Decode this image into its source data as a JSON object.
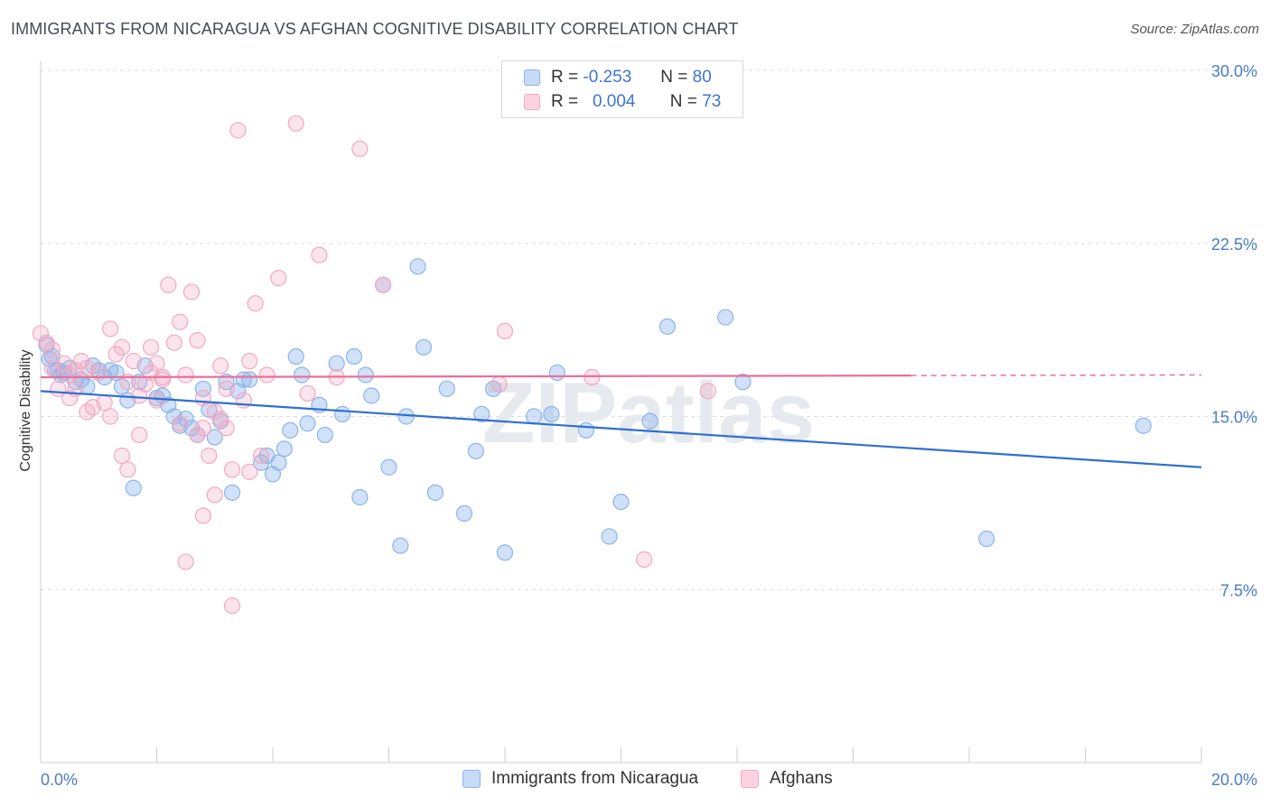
{
  "title": "IMMIGRANTS FROM NICARAGUA VS AFGHAN COGNITIVE DISABILITY CORRELATION CHART",
  "source": "Source: ZipAtlas.com",
  "watermark": "ZIPatlas",
  "legend": {
    "rows": [
      {
        "r_label": "R =",
        "r_value": "-0.253",
        "n_label": "N =",
        "n_value": "80",
        "color": "#8db4ea"
      },
      {
        "r_label": "R =",
        "r_value": "0.004",
        "n_label": "N =",
        "n_value": "73",
        "color": "#f3a8c0"
      }
    ]
  },
  "bottom_legend": [
    {
      "label": "Immigrants from Nicaragua",
      "color": "#8db4ea"
    },
    {
      "label": "Afghans",
      "color": "#f3a8c0"
    }
  ],
  "chart_data": {
    "type": "scatter",
    "ylabel": "Cognitive Disability",
    "xlim": [
      0,
      20
    ],
    "ylim": [
      0,
      30
    ],
    "x_tick_labels": [
      "0.0%",
      "20.0%"
    ],
    "y_ticks": [
      7.5,
      15.0,
      22.5,
      30.0
    ],
    "y_tick_labels": [
      "7.5%",
      "15.0%",
      "22.5%",
      "30.0%"
    ],
    "grid": true,
    "legend_position": "top-center",
    "series": [
      {
        "name": "Immigrants from Nicaragua",
        "color": "#8db4ea",
        "line_color": "#2e6fd1",
        "trend": {
          "x": [
            0,
            20
          ],
          "y": [
            16.1,
            12.8
          ],
          "dashed_from": null
        },
        "points": [
          [
            0.1,
            18.1
          ],
          [
            0.2,
            17.6
          ],
          [
            0.3,
            17.0
          ],
          [
            0.5,
            17.1
          ],
          [
            0.6,
            16.5
          ],
          [
            0.8,
            16.3
          ],
          [
            0.9,
            17.2
          ],
          [
            1.1,
            16.7
          ],
          [
            1.2,
            17.0
          ],
          [
            1.4,
            16.3
          ],
          [
            1.5,
            15.7
          ],
          [
            1.8,
            17.2
          ],
          [
            1.7,
            16.5
          ],
          [
            2.2,
            15.5
          ],
          [
            2.3,
            15.0
          ],
          [
            2.5,
            14.9
          ],
          [
            2.6,
            14.5
          ],
          [
            2.9,
            15.3
          ],
          [
            2.8,
            16.2
          ],
          [
            3.1,
            14.8
          ],
          [
            3.2,
            16.5
          ],
          [
            3.4,
            16.1
          ],
          [
            3.5,
            16.6
          ],
          [
            3.8,
            13.0
          ],
          [
            3.9,
            13.3
          ],
          [
            4.0,
            12.5
          ],
          [
            4.2,
            13.6
          ],
          [
            4.4,
            17.6
          ],
          [
            4.5,
            16.8
          ],
          [
            4.6,
            14.7
          ],
          [
            4.8,
            15.5
          ],
          [
            4.9,
            14.2
          ],
          [
            5.1,
            17.3
          ],
          [
            5.2,
            15.1
          ],
          [
            5.4,
            17.6
          ],
          [
            5.5,
            11.5
          ],
          [
            5.6,
            16.8
          ],
          [
            5.7,
            15.9
          ],
          [
            5.9,
            20.7
          ],
          [
            6.0,
            12.8
          ],
          [
            6.2,
            9.4
          ],
          [
            6.3,
            15.0
          ],
          [
            6.5,
            21.5
          ],
          [
            6.6,
            18.0
          ],
          [
            6.8,
            11.7
          ],
          [
            7.0,
            16.2
          ],
          [
            7.3,
            10.8
          ],
          [
            7.5,
            13.5
          ],
          [
            7.6,
            15.1
          ],
          [
            7.8,
            16.2
          ],
          [
            8.0,
            9.1
          ],
          [
            8.5,
            15.0
          ],
          [
            8.8,
            15.1
          ],
          [
            8.9,
            16.9
          ],
          [
            9.4,
            14.4
          ],
          [
            9.8,
            9.8
          ],
          [
            10.0,
            11.3
          ],
          [
            10.5,
            14.8
          ],
          [
            10.8,
            18.9
          ],
          [
            11.8,
            19.3
          ],
          [
            12.1,
            16.5
          ],
          [
            16.3,
            9.7
          ],
          [
            19.0,
            14.6
          ],
          [
            1.0,
            17.0
          ],
          [
            0.4,
            16.9
          ],
          [
            0.7,
            16.6
          ],
          [
            1.3,
            16.9
          ],
          [
            2.0,
            15.8
          ],
          [
            2.4,
            14.6
          ],
          [
            3.0,
            14.1
          ],
          [
            3.3,
            11.7
          ],
          [
            3.6,
            16.6
          ],
          [
            2.7,
            14.2
          ],
          [
            2.1,
            15.9
          ],
          [
            1.6,
            11.9
          ],
          [
            0.15,
            17.5
          ],
          [
            0.25,
            17.0
          ],
          [
            4.1,
            13.0
          ],
          [
            4.3,
            14.4
          ],
          [
            0.35,
            16.8
          ]
        ]
      },
      {
        "name": "Afghans",
        "color": "#f3a8c0",
        "line_color": "#e8709a",
        "trend": {
          "x": [
            0,
            20
          ],
          "y": [
            16.7,
            16.8
          ],
          "dashed_from": 15.0
        },
        "points": [
          [
            0.0,
            18.6
          ],
          [
            0.1,
            18.2
          ],
          [
            0.2,
            17.1
          ],
          [
            0.3,
            16.2
          ],
          [
            0.4,
            17.3
          ],
          [
            0.5,
            15.8
          ],
          [
            0.6,
            16.2
          ],
          [
            0.7,
            17.4
          ],
          [
            0.8,
            17.1
          ],
          [
            0.9,
            15.4
          ],
          [
            1.0,
            16.9
          ],
          [
            1.1,
            15.6
          ],
          [
            1.2,
            18.8
          ],
          [
            1.3,
            17.7
          ],
          [
            1.4,
            18.0
          ],
          [
            1.5,
            16.5
          ],
          [
            1.6,
            17.4
          ],
          [
            1.7,
            15.9
          ],
          [
            1.8,
            16.4
          ],
          [
            1.9,
            18.0
          ],
          [
            2.0,
            17.3
          ],
          [
            2.1,
            16.7
          ],
          [
            2.2,
            20.7
          ],
          [
            2.3,
            18.2
          ],
          [
            2.4,
            19.1
          ],
          [
            2.5,
            16.8
          ],
          [
            2.6,
            20.4
          ],
          [
            2.7,
            14.2
          ],
          [
            2.8,
            14.5
          ],
          [
            2.9,
            13.3
          ],
          [
            3.0,
            11.6
          ],
          [
            3.1,
            14.9
          ],
          [
            3.2,
            16.2
          ],
          [
            3.3,
            12.7
          ],
          [
            3.4,
            27.4
          ],
          [
            3.5,
            15.7
          ],
          [
            3.6,
            17.4
          ],
          [
            3.7,
            19.9
          ],
          [
            3.8,
            13.3
          ],
          [
            3.9,
            16.8
          ],
          [
            4.1,
            21.0
          ],
          [
            4.4,
            27.7
          ],
          [
            4.6,
            16.0
          ],
          [
            4.8,
            22.0
          ],
          [
            5.1,
            16.7
          ],
          [
            5.5,
            26.6
          ],
          [
            5.9,
            20.7
          ],
          [
            7.9,
            16.4
          ],
          [
            8.0,
            18.7
          ],
          [
            9.5,
            16.7
          ],
          [
            10.4,
            8.8
          ],
          [
            11.5,
            16.1
          ],
          [
            2.5,
            8.7
          ],
          [
            2.8,
            10.7
          ],
          [
            3.3,
            6.8
          ],
          [
            1.5,
            12.7
          ],
          [
            1.7,
            14.2
          ],
          [
            2.0,
            15.7
          ],
          [
            2.4,
            14.7
          ],
          [
            3.0,
            15.2
          ],
          [
            3.6,
            12.6
          ],
          [
            1.2,
            15.0
          ],
          [
            0.8,
            15.2
          ],
          [
            1.4,
            13.3
          ],
          [
            2.8,
            15.8
          ],
          [
            3.2,
            14.5
          ],
          [
            0.5,
            16.8
          ],
          [
            1.9,
            16.9
          ],
          [
            2.1,
            16.6
          ],
          [
            0.2,
            17.9
          ],
          [
            0.6,
            17.0
          ],
          [
            2.7,
            18.3
          ],
          [
            3.1,
            17.2
          ]
        ]
      }
    ]
  }
}
